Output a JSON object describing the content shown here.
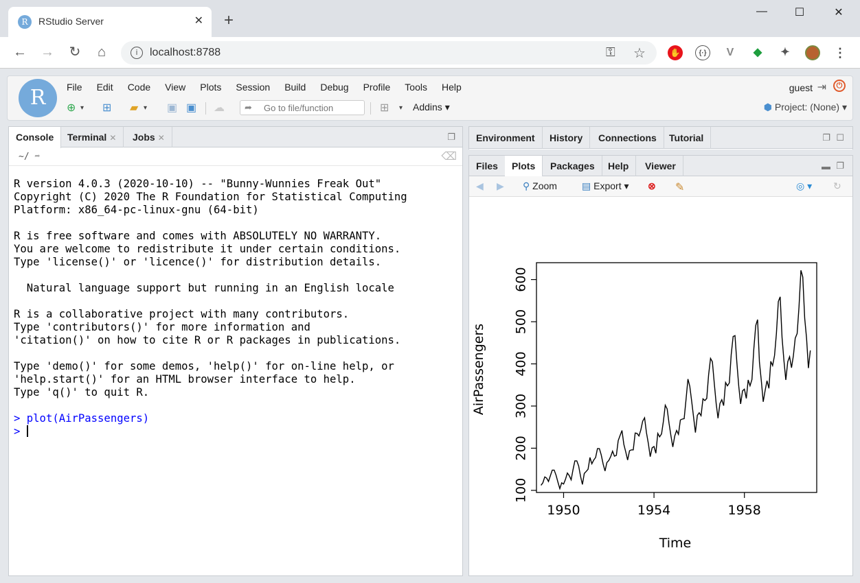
{
  "browser": {
    "tab_title": "RStudio Server",
    "favicon_letter": "R",
    "url": "localhost:8788",
    "window_controls": [
      "—",
      "☐",
      "✕"
    ]
  },
  "app": {
    "logo_letter": "R",
    "menu": [
      "File",
      "Edit",
      "Code",
      "View",
      "Plots",
      "Session",
      "Build",
      "Debug",
      "Profile",
      "Tools",
      "Help"
    ],
    "user": "guest",
    "goto_placeholder": "Go to file/function",
    "addins_label": "Addins",
    "project_label": "Project: (None)"
  },
  "left_pane": {
    "tabs": [
      "Console",
      "Terminal",
      "Jobs"
    ],
    "path": "~/",
    "console_lines": [
      "R version 4.0.3 (2020-10-10) -- \"Bunny-Wunnies Freak Out\"",
      "Copyright (C) 2020 The R Foundation for Statistical Computing",
      "Platform: x86_64-pc-linux-gnu (64-bit)",
      "",
      "R is free software and comes with ABSOLUTELY NO WARRANTY.",
      "You are welcome to redistribute it under certain conditions.",
      "Type 'license()' or 'licence()' for distribution details.",
      "",
      "  Natural language support but running in an English locale",
      "",
      "R is a collaborative project with many contributors.",
      "Type 'contributors()' for more information and",
      "'citation()' on how to cite R or R packages in publications.",
      "",
      "Type 'demo()' for some demos, 'help()' for on-line help, or",
      "'help.start()' for an HTML browser interface to help.",
      "Type 'q()' to quit R.",
      ""
    ],
    "command": "> plot(AirPassengers)",
    "prompt": ">"
  },
  "right_top_pane": {
    "tabs": [
      "Environment",
      "History",
      "Connections",
      "Tutorial"
    ]
  },
  "right_bottom_pane": {
    "tabs": [
      "Files",
      "Plots",
      "Packages",
      "Help",
      "Viewer"
    ],
    "toolbar": {
      "zoom": "Zoom",
      "export": "Export"
    }
  },
  "chart_data": {
    "type": "line",
    "title": "",
    "xlabel": "Time",
    "ylabel": "AirPassengers",
    "xlim": [
      1948.8,
      1961.2
    ],
    "ylim": [
      95,
      640
    ],
    "x_ticks": [
      1950,
      1954,
      1958
    ],
    "y_ticks": [
      100,
      200,
      300,
      400,
      500,
      600
    ],
    "x_start": 1949,
    "x_step": 0.0833333,
    "values": [
      112,
      118,
      132,
      129,
      121,
      135,
      148,
      148,
      136,
      119,
      104,
      118,
      115,
      126,
      141,
      135,
      125,
      149,
      170,
      170,
      158,
      133,
      114,
      140,
      145,
      150,
      178,
      163,
      172,
      178,
      199,
      199,
      184,
      162,
      146,
      166,
      171,
      180,
      193,
      181,
      183,
      218,
      230,
      242,
      209,
      191,
      172,
      194,
      196,
      196,
      236,
      235,
      229,
      243,
      264,
      272,
      237,
      211,
      180,
      201,
      204,
      188,
      235,
      227,
      234,
      264,
      302,
      293,
      259,
      229,
      203,
      229,
      242,
      233,
      267,
      269,
      270,
      315,
      364,
      347,
      312,
      274,
      237,
      278,
      284,
      277,
      317,
      313,
      318,
      374,
      413,
      405,
      355,
      306,
      271,
      306,
      315,
      301,
      356,
      348,
      355,
      422,
      465,
      467,
      404,
      347,
      305,
      336,
      340,
      318,
      362,
      348,
      363,
      435,
      491,
      505,
      404,
      359,
      310,
      337,
      360,
      342,
      406,
      396,
      420,
      472,
      548,
      559,
      463,
      407,
      362,
      405,
      417,
      391,
      419,
      461,
      472,
      535,
      622,
      606,
      508,
      461,
      390,
      432
    ],
    "line_color": "#000000"
  }
}
